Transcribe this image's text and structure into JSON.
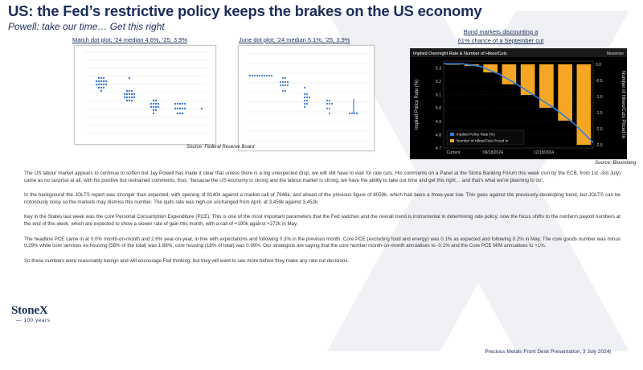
{
  "title": "US: the Fed’s restrictive policy keeps the brakes on the US economy",
  "subtitle": "Powell: take our time… Get this right",
  "dot_plot_march": {
    "caption": "March dot plot; ’24 median 4.6%, ’25, 3.9%"
  },
  "dot_plot_june": {
    "caption": "June dot plot; ’24 median 5.1%, ’25, 3.9%"
  },
  "dot_plot_source": "Source: Federal Reserve Board",
  "market_chart": {
    "caption_line1": "Bond markets discounting a",
    "caption_line2": "61% chance of a September cut",
    "source": "Source: Bloomberg"
  },
  "chart_data": {
    "type": "bar",
    "title": "Implied Overnight Rate & Number of Hikes/Cuts",
    "right_header": "Maximize",
    "ylabel": "Implied Policy Rate (%)",
    "y2label": "Number of Hikes/Cuts Priced In",
    "ylim": [
      4.7,
      5.35
    ],
    "y_ticks": [
      "5.3",
      "5.2",
      "5.1",
      "5.0",
      "4.9",
      "4.8",
      "4.7"
    ],
    "y2lim": [
      -2.6,
      0.1
    ],
    "y2_ticks": [
      "0.0",
      "-0.5",
      "-1.0",
      "-1.5",
      "-2.0",
      "-2.5"
    ],
    "x_ticks": [
      "Current",
      "09/18/2024",
      "12/18/2024"
    ],
    "legend": [
      "Implied Policy Rate (%)",
      "Number of Hikes/Cuts Priced In"
    ],
    "line_values": [
      5.33,
      5.33,
      5.31,
      5.25,
      5.17,
      5.08,
      4.99,
      4.88,
      4.74
    ],
    "bar_values": [
      0,
      -0.05,
      -0.25,
      -0.62,
      -0.95,
      -1.35,
      -1.75,
      -2.5
    ]
  },
  "paragraphs": [
    "The US labour market appears to continue to soften but Jay Powell has made it clear that unless there is a big unexpected drop, we will still have to wait for rate cuts. His comments on a Panel at the Sintra Banking Forum this week (run by the ECB, from 1st -3rd July) came as no surprise at all, with his positive but restrained comments, thus: “because the US economy is strong and the labour market is strong, we have the ability to take our time and get this right… and that’s what we’re planning to do”.",
    "In the background the JOLTS report was stronger than expected, with opening of 8140k against a market call of 7946k, and ahead of the previous figure of 8059k, which had been a three-year low. This goes against the previously-developing trend, but JOLTS can be notoriously noisy so the markets may dismiss this number. The quits rate was nigh-on unchanged from April, at 3,459k against 3,452k.",
    "Key in the States last week was the core Personal Consumption Expenditure (PCE). This is one of the most important parameters that the Fed watches and the overall trend is instrumental in determining rate policy; now the focus shifts to the nonfarm payroll numbers at the end of this week, which are expected to show a slower rate of gain this month, with a call of +190k against +272k in May.",
    "The headline PCE came in at 0.0% month-on-month and 2.6% year-on-year, in line with expectations and following 0.3% in the previous month. Core PCE (excluding food and energy) was 0.1% as expected and following 0.2% in May. The core goods number was minus 0.29% while core services ex-housing (56% of the total) was 1.88%, core housing (18% of total) was 0.99%. Our strategists are saying that the core number month-on-month annualises to -0.1% and the Core PCE M/M annualises to +1%.",
    "So these numbers were reasonably benign and will encourage Fed thinking, but they will want to see more before they make any rate cut decisions."
  ],
  "logo": {
    "name": "StoneX",
    "tagline": "100 years"
  },
  "footer": "Precious Metals Front Desk Presentation, 3 July 2024|",
  "colors": {
    "navy": "#1b2e5a",
    "line_blue": "#2f7fd8",
    "bar_orange": "#f5a623"
  }
}
